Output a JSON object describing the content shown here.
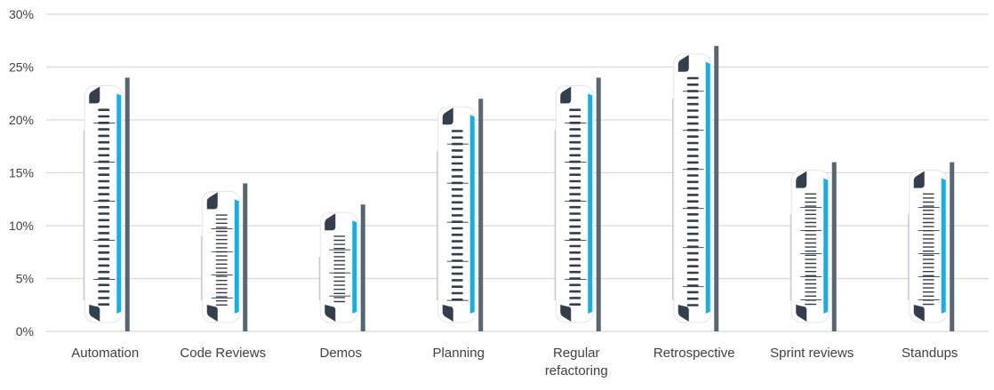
{
  "chart_data": {
    "type": "bar",
    "title": "",
    "xlabel": "",
    "ylabel": "",
    "categories": [
      "Automation",
      "Code Reviews",
      "Demos",
      "Planning",
      "Regular refactoring",
      "Retrospective",
      "Sprint reviews",
      "Standups"
    ],
    "category_label_lines": [
      [
        "Automation"
      ],
      [
        "Code Reviews"
      ],
      [
        "Demos"
      ],
      [
        "Planning"
      ],
      [
        "Regular",
        "refactoring"
      ],
      [
        "Retrospective"
      ],
      [
        "Sprint reviews"
      ],
      [
        "Standups"
      ]
    ],
    "values": [
      24,
      14,
      12,
      22,
      24,
      27,
      16,
      16
    ],
    "ylim": [
      0,
      30
    ],
    "yticks": [
      0,
      5,
      10,
      15,
      20,
      25,
      30
    ],
    "ytick_labels": [
      "0%",
      "5%",
      "10%",
      "15%",
      "20%",
      "25%",
      "30%"
    ],
    "grid": true,
    "legend": "none"
  },
  "colors": {
    "bar": "#596570",
    "accent_stripe": "#1aaee0",
    "rack_body": "#ffffff",
    "rack_dark": "#343f4b",
    "gridline": "#d9d9d9",
    "tick_text": "#404040"
  }
}
